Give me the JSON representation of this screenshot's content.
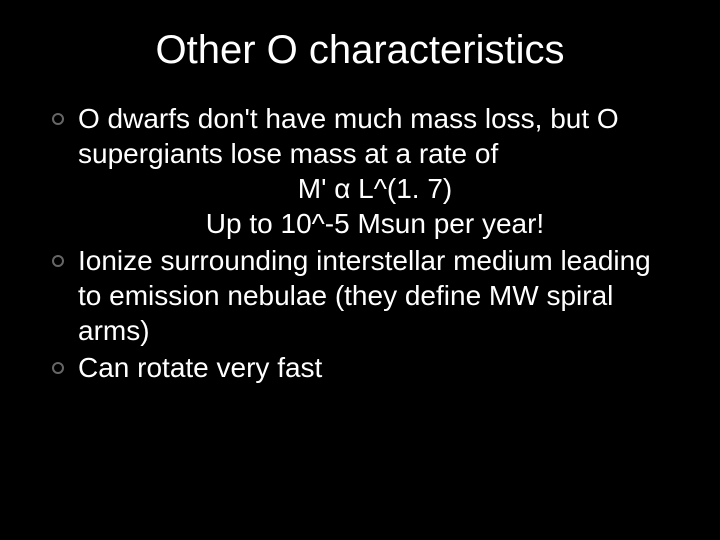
{
  "slide": {
    "title": "Other O characteristics",
    "background_color": "#000000",
    "title_color": "#ffffff",
    "title_fontsize": 40,
    "body_color": "#ffffff",
    "body_fontsize": 28,
    "bullet_border_color": "#666666",
    "bullets": [
      {
        "lines": [
          "O dwarfs don't have much mass loss, but O supergiants lose mass at a rate of",
          "M' α L^(1. 7)",
          "Up to 10^-5 Msun per year!"
        ],
        "centered_lines": [
          1,
          2
        ]
      },
      {
        "lines": [
          "Ionize surrounding interstellar medium leading to emission nebulae (they define MW spiral arms)"
        ],
        "centered_lines": []
      },
      {
        "lines": [
          "Can rotate very fast"
        ],
        "centered_lines": []
      }
    ]
  }
}
